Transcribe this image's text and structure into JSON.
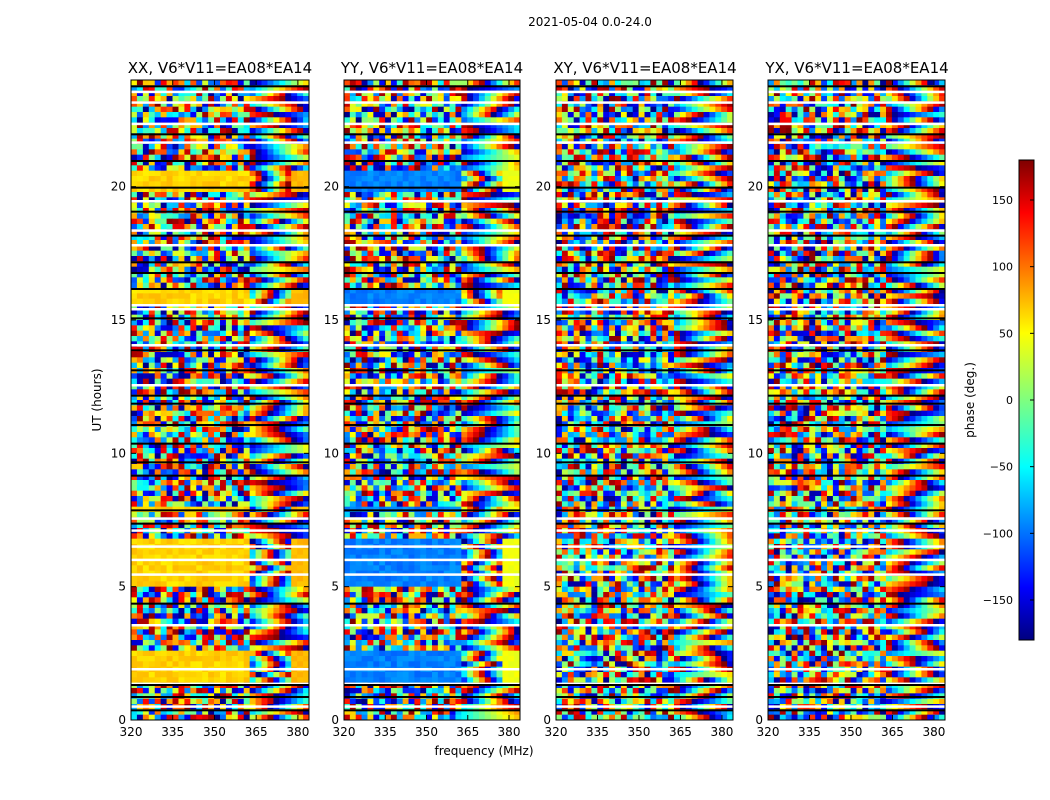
{
  "figure": {
    "suptitle": "2021-05-04 0.0-24.0"
  },
  "chart_data": [
    {
      "type": "heatmap",
      "title": "XX, V6*V11=EA08*EA14",
      "xlabel": "",
      "ylabel": "UT (hours)",
      "xlim": [
        320,
        384
      ],
      "ylim": [
        0,
        24
      ],
      "xticks": [
        320,
        335,
        350,
        365,
        380
      ],
      "yticks": [
        0,
        5,
        10,
        15,
        20
      ],
      "smooth_value_deg": 60,
      "alt_smooth_value_deg": 70
    },
    {
      "type": "heatmap",
      "title": "YY, V6*V11=EA08*EA14",
      "xlabel": "frequency (MHz)",
      "ylabel": "",
      "xlim": [
        320,
        384
      ],
      "ylim": [
        0,
        24
      ],
      "xticks": [
        320,
        335,
        350,
        365,
        380
      ],
      "yticks": [
        0,
        5,
        10,
        15,
        20
      ],
      "smooth_value_deg": -90,
      "alt_smooth_value_deg": 40
    },
    {
      "type": "heatmap",
      "title": "XY, V6*V11=EA08*EA14",
      "xlabel": "",
      "ylabel": "",
      "xlim": [
        320,
        384
      ],
      "ylim": [
        0,
        24
      ],
      "xticks": [
        320,
        335,
        350,
        365,
        380
      ],
      "yticks": [
        0,
        5,
        10,
        15,
        20
      ]
    },
    {
      "type": "heatmap",
      "title": "YX, V6*V11=EA08*EA14",
      "xlabel": "",
      "ylabel": "",
      "xlim": [
        320,
        384
      ],
      "ylim": [
        0,
        24
      ],
      "xticks": [
        320,
        335,
        350,
        365,
        380
      ],
      "yticks": [
        0,
        5,
        10,
        15,
        20
      ]
    }
  ],
  "colorbar": {
    "label": "phase (deg.)",
    "range": [
      -180,
      180
    ],
    "ticks": [
      150,
      100,
      50,
      0,
      -50,
      -100,
      -150
    ],
    "tick_labels": [
      "150",
      "100",
      "50",
      "0",
      "−50",
      "−100",
      "−150"
    ],
    "colormap": "jet"
  }
}
